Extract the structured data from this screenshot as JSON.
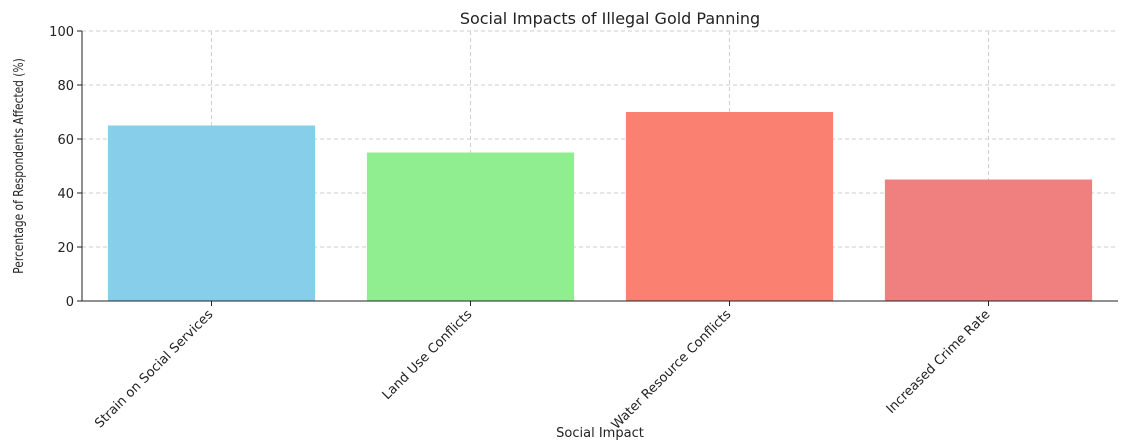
{
  "chart_data": {
    "type": "bar",
    "title": "Social Impacts of Illegal Gold Panning",
    "xlabel": "Social Impact",
    "ylabel": "Percentage of Respondents Affected (%)",
    "categories": [
      "Strain on Social Services",
      "Land Use Conflicts",
      "Water Resource Conflicts",
      "Increased Crime Rate"
    ],
    "values": [
      65,
      55,
      70,
      45
    ],
    "colors": [
      "#87CEEB",
      "#90EE90",
      "#FA8072",
      "#F08080"
    ],
    "ylim": [
      0,
      100
    ],
    "yticks": [
      0,
      20,
      40,
      60,
      80,
      100
    ],
    "grid": true
  }
}
